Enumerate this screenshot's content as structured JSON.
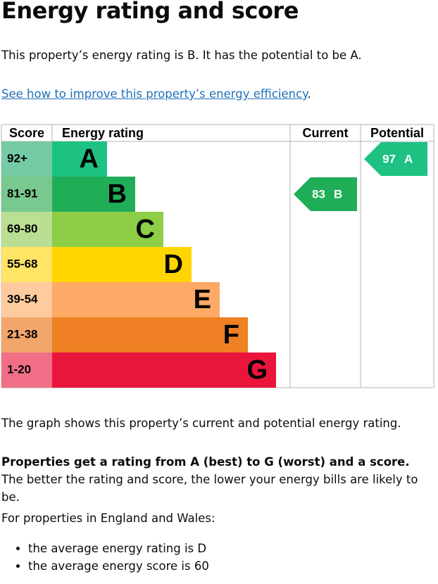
{
  "title": "Energy rating and score",
  "intro": "This property’s energy rating is B. It has the potential to be A.",
  "link": {
    "text": "See how to improve this property’s energy efficiency",
    "after": "."
  },
  "graph": {
    "headers": [
      "Score",
      "Energy rating",
      "Current",
      "Potential"
    ],
    "bands": [
      {
        "score": "92+",
        "letter": "A",
        "color": "#1dc283",
        "light": "#74cba5"
      },
      {
        "score": "81-91",
        "letter": "B",
        "color": "#20ad58",
        "light": "#79c88f"
      },
      {
        "score": "69-80",
        "letter": "C",
        "color": "#8dce46",
        "light": "#badf92"
      },
      {
        "score": "55-68",
        "letter": "D",
        "color": "#ffd500",
        "light": "#ffe466"
      },
      {
        "score": "39-54",
        "letter": "E",
        "color": "#fcaa65",
        "light": "#fdcb9e"
      },
      {
        "score": "21-38",
        "letter": "F",
        "color": "#ef8023",
        "light": "#f3a66b"
      },
      {
        "score": "1-20",
        "letter": "G",
        "color": "#e9153b",
        "light": "#f06f87"
      }
    ],
    "current": {
      "score": 83,
      "rating": "B"
    },
    "potential": {
      "score": 97,
      "rating": "A"
    }
  },
  "graph_note": "The graph shows this property’s current and potential energy rating.",
  "explain": {
    "bold": "Properties get a rating from A (best) to G (worst) and a score.",
    "text": "The better the rating and score, the lower your energy bills are likely to be."
  },
  "region": "For properties in England and Wales:",
  "bullets": [
    "the average energy rating is D",
    "the average energy score is 60"
  ]
}
